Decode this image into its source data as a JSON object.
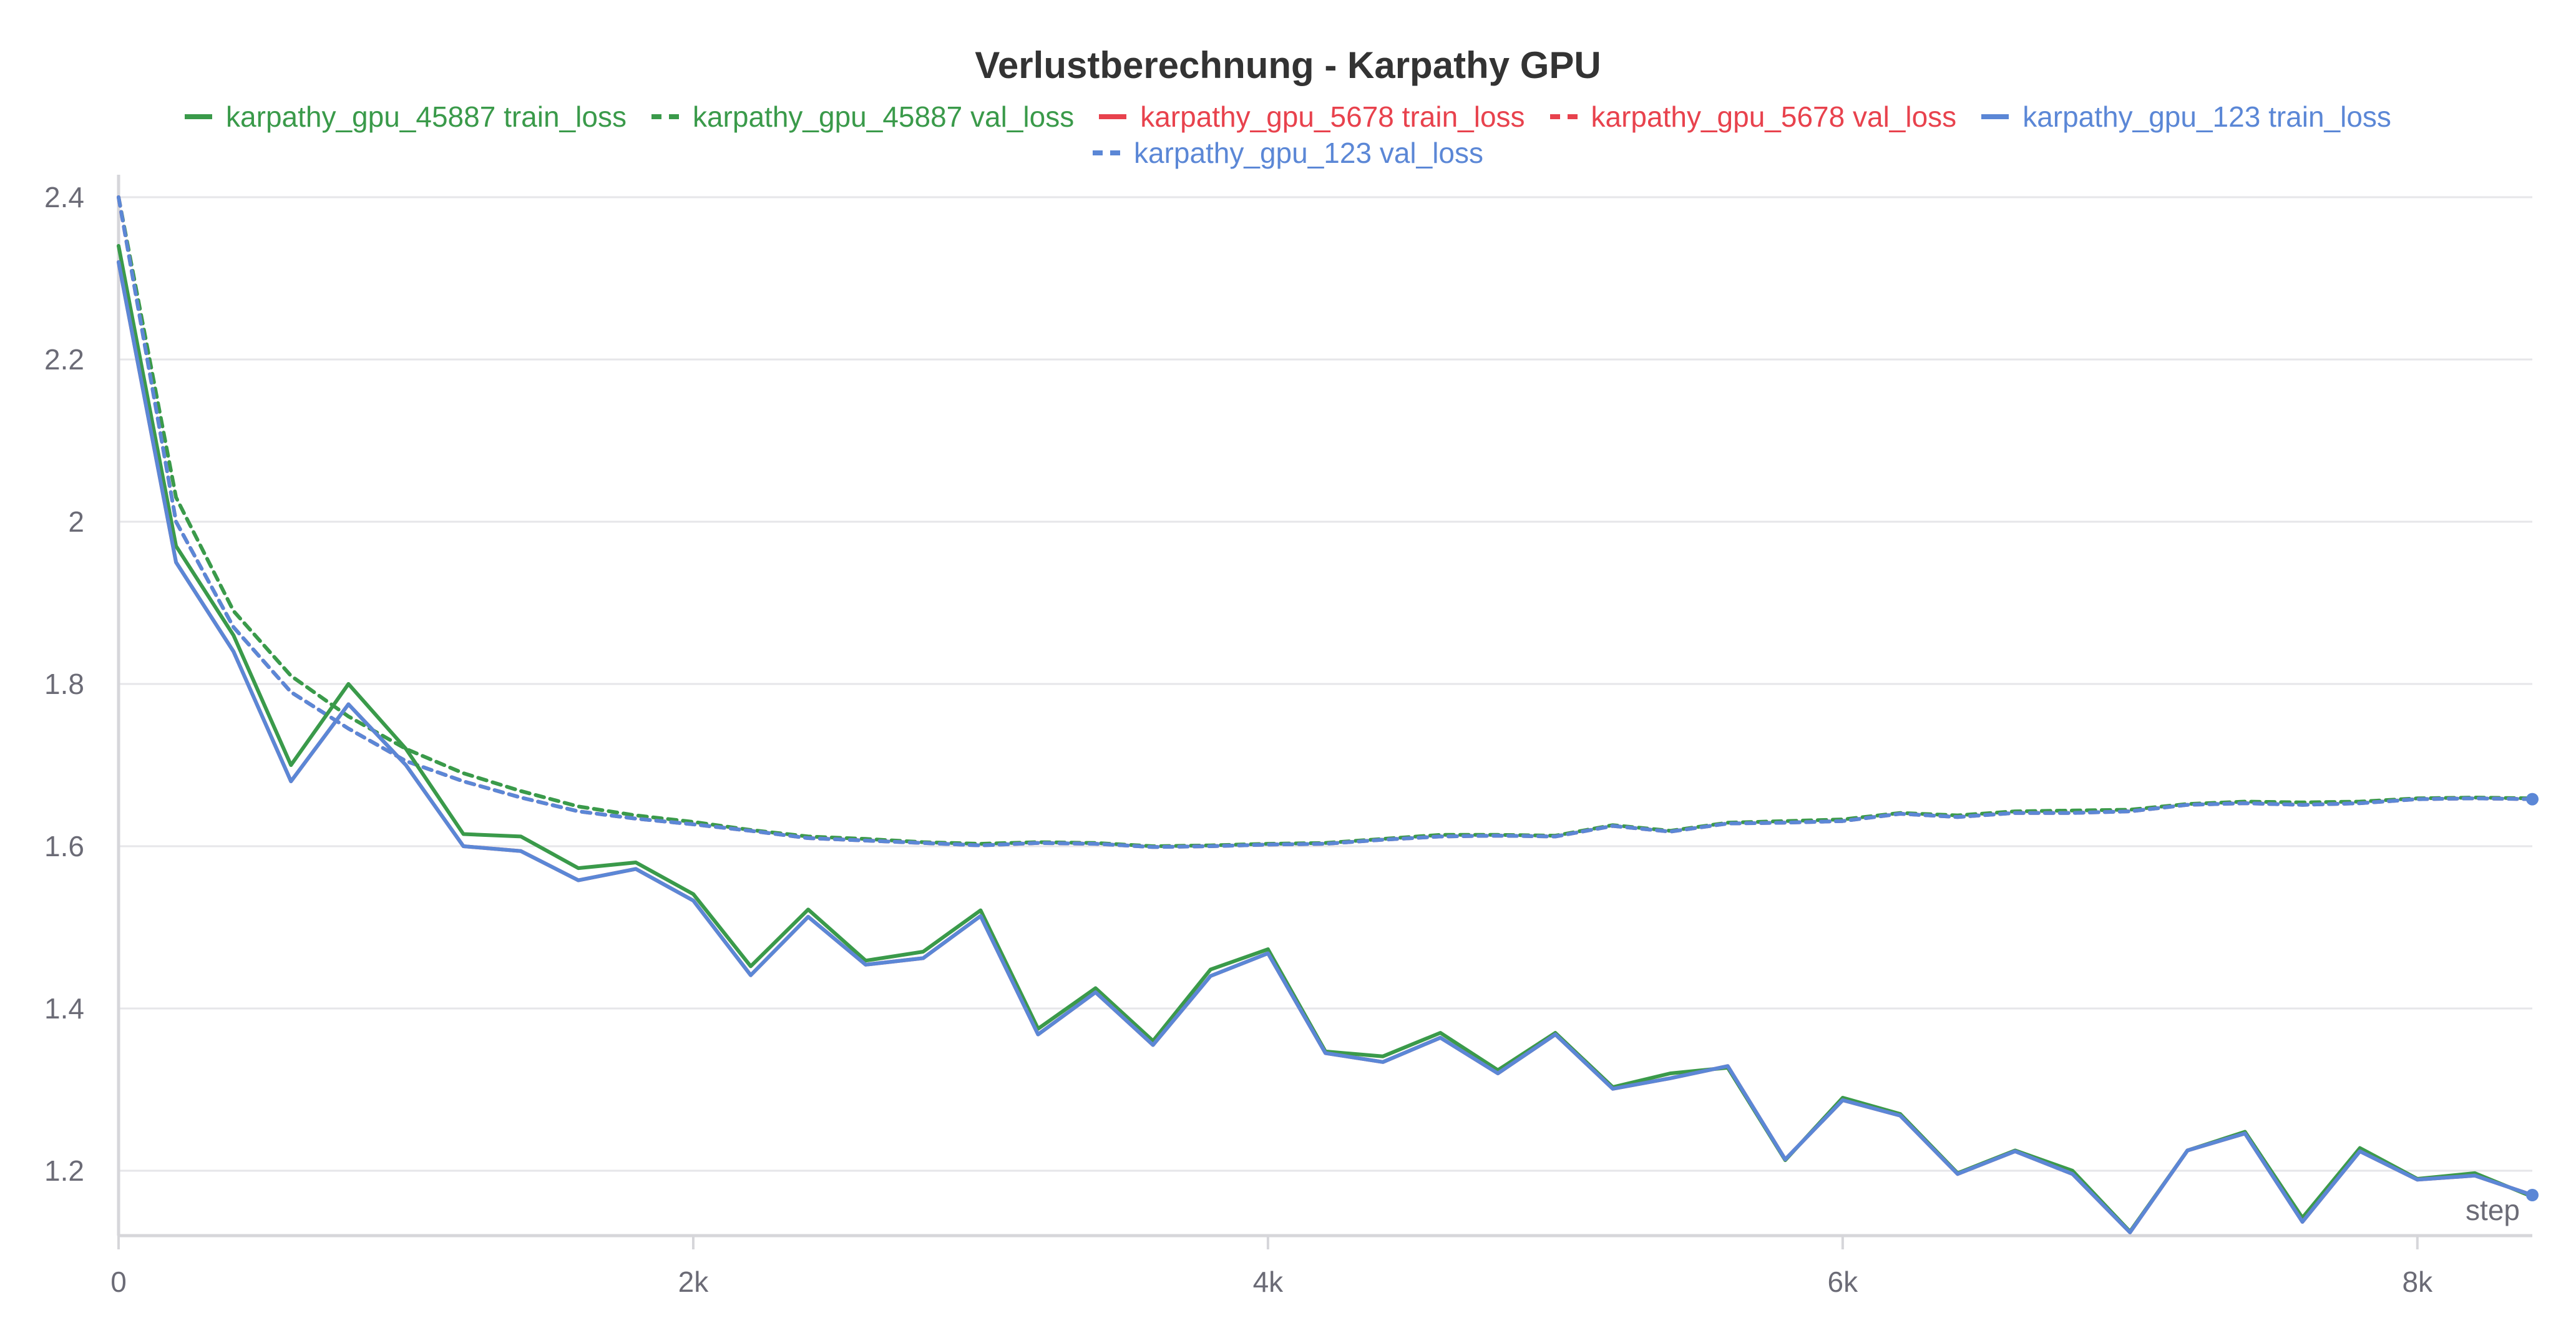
{
  "chart_data": {
    "type": "line",
    "title": "Verlustberechnung - Karpathy GPU",
    "xlabel": "step",
    "ylabel": "",
    "xlim": [
      0,
      8400
    ],
    "ylim": [
      1.12,
      2.42
    ],
    "x_ticks": [
      0,
      2000,
      4000,
      6000,
      8000
    ],
    "x_tick_labels": [
      "0",
      "2k",
      "4k",
      "6k",
      "8k"
    ],
    "y_ticks": [
      1.2,
      1.4,
      1.6,
      1.8,
      2.0,
      2.2,
      2.4
    ],
    "y_tick_labels": [
      "1.2",
      "1.4",
      "1.6",
      "1.8",
      "2",
      "2.2",
      "2.4"
    ],
    "grid": true,
    "legend_position": "top",
    "x": [
      0,
      200,
      400,
      600,
      800,
      1000,
      1200,
      1400,
      1600,
      1800,
      2000,
      2200,
      2400,
      2600,
      2800,
      3000,
      3200,
      3400,
      3600,
      3800,
      4000,
      4200,
      4400,
      4600,
      4800,
      5000,
      5200,
      5400,
      5600,
      5800,
      6000,
      6200,
      6400,
      6600,
      6800,
      7000,
      7200,
      7400,
      7600,
      7800,
      8000,
      8200,
      8400
    ],
    "series": [
      {
        "name": "karpathy_gpu_45887 train_loss",
        "color": "#3a9a4a",
        "style": "solid",
        "values": [
          2.34,
          1.97,
          1.86,
          1.7,
          1.8,
          1.72,
          1.615,
          1.612,
          1.573,
          1.58,
          1.541,
          1.452,
          1.522,
          1.459,
          1.47,
          1.521,
          1.375,
          1.425,
          1.36,
          1.448,
          1.473,
          1.347,
          1.341,
          1.37,
          1.324,
          1.37,
          1.303,
          1.32,
          1.327,
          1.213,
          1.29,
          1.27,
          1.197,
          1.225,
          1.2,
          1.125,
          1.225,
          1.248,
          1.142,
          1.228,
          1.19,
          1.197,
          1.168
        ]
      },
      {
        "name": "karpathy_gpu_45887 val_loss",
        "color": "#3a9a4a",
        "style": "dashed",
        "values": [
          2.4,
          2.03,
          1.89,
          1.81,
          1.76,
          1.72,
          1.69,
          1.668,
          1.649,
          1.638,
          1.63,
          1.62,
          1.612,
          1.609,
          1.605,
          1.603,
          1.605,
          1.604,
          1.6,
          1.601,
          1.603,
          1.604,
          1.609,
          1.614,
          1.614,
          1.613,
          1.626,
          1.619,
          1.629,
          1.631,
          1.633,
          1.641,
          1.638,
          1.643,
          1.644,
          1.645,
          1.652,
          1.655,
          1.654,
          1.655,
          1.659,
          1.66,
          1.659
        ]
      },
      {
        "name": "karpathy_gpu_5678 train_loss",
        "color": "#e8424d",
        "style": "solid",
        "values": [
          2.32,
          1.95,
          1.84,
          1.68,
          1.775,
          1.7,
          1.6,
          1.594,
          1.558,
          1.572,
          1.533,
          1.441,
          1.513,
          1.454,
          1.462,
          1.514,
          1.368,
          1.42,
          1.355,
          1.44,
          1.468,
          1.345,
          1.334,
          1.364,
          1.32,
          1.368,
          1.301,
          1.314,
          1.329,
          1.214,
          1.287,
          1.268,
          1.196,
          1.224,
          1.196,
          1.124,
          1.225,
          1.246,
          1.137,
          1.224,
          1.189,
          1.194,
          1.17
        ]
      },
      {
        "name": "karpathy_gpu_5678 val_loss",
        "color": "#e8424d",
        "style": "dashed",
        "values": [
          2.4,
          2.0,
          1.87,
          1.79,
          1.745,
          1.705,
          1.68,
          1.66,
          1.643,
          1.634,
          1.627,
          1.619,
          1.61,
          1.607,
          1.604,
          1.601,
          1.604,
          1.603,
          1.599,
          1.6,
          1.602,
          1.603,
          1.608,
          1.612,
          1.613,
          1.612,
          1.625,
          1.618,
          1.628,
          1.629,
          1.631,
          1.64,
          1.636,
          1.641,
          1.641,
          1.643,
          1.651,
          1.653,
          1.651,
          1.653,
          1.658,
          1.659,
          1.658
        ]
      },
      {
        "name": "karpathy_gpu_123 train_loss",
        "color": "#5b87d6",
        "style": "solid",
        "values": [
          2.32,
          1.95,
          1.84,
          1.68,
          1.775,
          1.7,
          1.6,
          1.594,
          1.558,
          1.572,
          1.533,
          1.441,
          1.513,
          1.454,
          1.462,
          1.514,
          1.368,
          1.42,
          1.355,
          1.44,
          1.468,
          1.345,
          1.334,
          1.364,
          1.32,
          1.368,
          1.301,
          1.314,
          1.329,
          1.214,
          1.287,
          1.268,
          1.196,
          1.224,
          1.196,
          1.124,
          1.225,
          1.246,
          1.137,
          1.224,
          1.189,
          1.194,
          1.17
        ]
      },
      {
        "name": "karpathy_gpu_123 val_loss",
        "color": "#5b87d6",
        "style": "dashed",
        "values": [
          2.4,
          2.0,
          1.87,
          1.79,
          1.745,
          1.705,
          1.68,
          1.66,
          1.643,
          1.634,
          1.627,
          1.619,
          1.61,
          1.607,
          1.604,
          1.601,
          1.604,
          1.603,
          1.599,
          1.6,
          1.602,
          1.603,
          1.608,
          1.612,
          1.613,
          1.612,
          1.625,
          1.618,
          1.628,
          1.629,
          1.631,
          1.64,
          1.636,
          1.641,
          1.641,
          1.643,
          1.651,
          1.653,
          1.651,
          1.653,
          1.658,
          1.659,
          1.658
        ]
      }
    ]
  }
}
